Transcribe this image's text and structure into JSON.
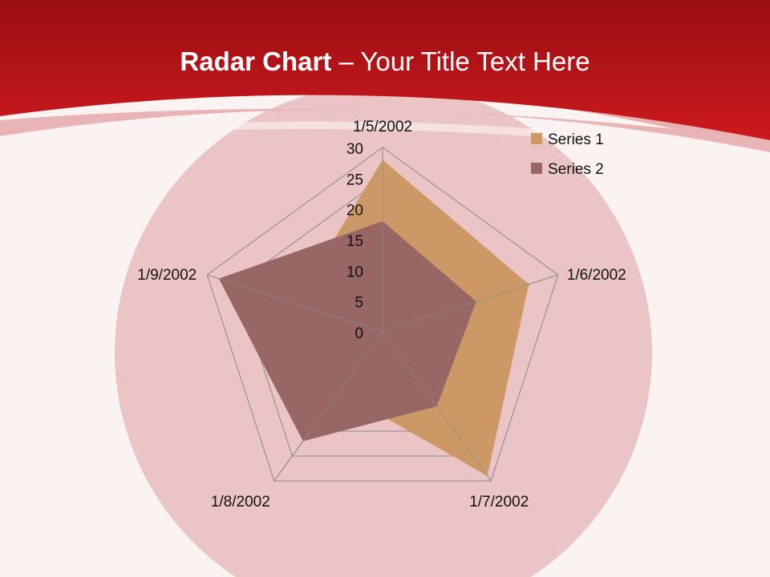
{
  "slide": {
    "title_bold": "Radar Chart",
    "title_rest": " – Your Title Text Here",
    "colors": {
      "header": "#b3141a",
      "background": "#fbf3f2"
    }
  },
  "chart_data": {
    "type": "radar",
    "categories": [
      "1/5/2002",
      "1/6/2002",
      "1/7/2002",
      "1/8/2002",
      "1/9/2002"
    ],
    "series": [
      {
        "name": "Series 1",
        "values": [
          28,
          25,
          29,
          12,
          15
        ],
        "color": "#cc9966"
      },
      {
        "name": "Series 2",
        "values": [
          18,
          16,
          15,
          22,
          28
        ],
        "color": "#996666"
      }
    ],
    "axis": {
      "min": 0,
      "max": 30,
      "step": 5,
      "ticks": [
        "0",
        "5",
        "10",
        "15",
        "20",
        "25",
        "30"
      ]
    },
    "grid": true,
    "legend": "top-right"
  }
}
